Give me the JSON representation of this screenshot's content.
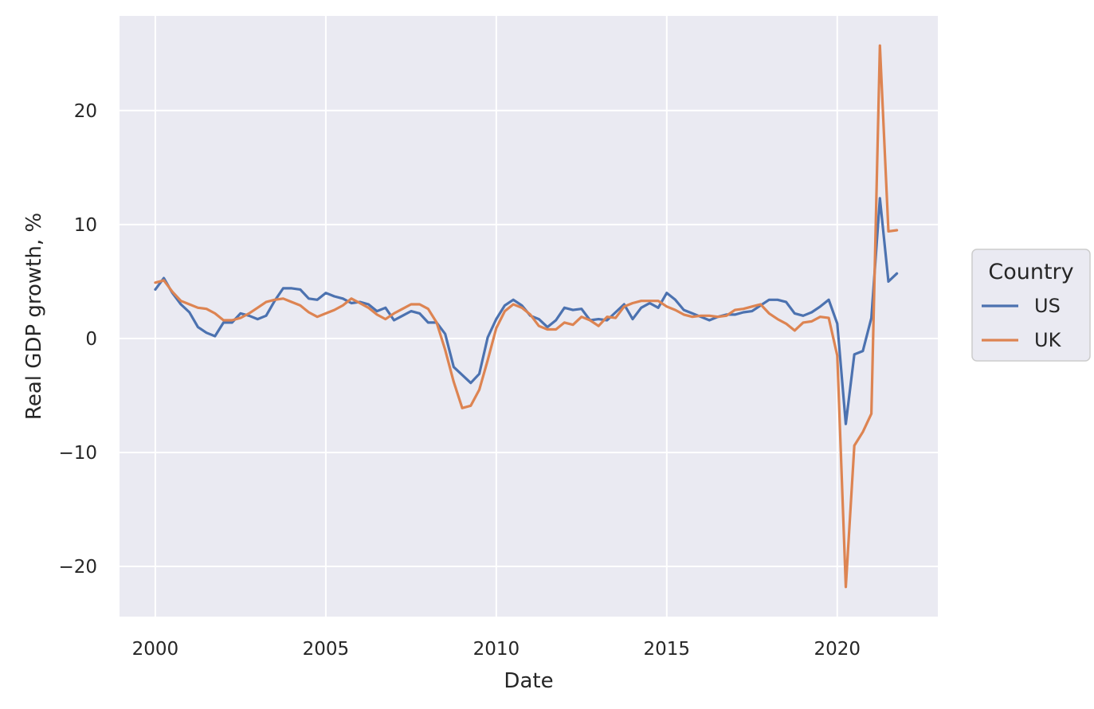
{
  "chart_data": {
    "type": "line",
    "xlabel": "Date",
    "ylabel": "Real GDP growth, %",
    "xlim": [
      1998.95,
      2022.95
    ],
    "ylim": [
      -24.4,
      28.3
    ],
    "x_ticks": [
      2000,
      2005,
      2010,
      2015,
      2020
    ],
    "x_tick_labels": [
      "2000",
      "2005",
      "2010",
      "2015",
      "2020"
    ],
    "y_ticks": [
      -20,
      -10,
      0,
      10,
      20
    ],
    "y_tick_labels": [
      "−20",
      "−10",
      "0",
      "10",
      "20"
    ],
    "grid": true,
    "background": "#EAEAF2",
    "legend": {
      "title": "Country",
      "placement": "outside-right"
    },
    "x": [
      2000.0,
      2000.25,
      2000.5,
      2000.75,
      2001.0,
      2001.25,
      2001.5,
      2001.75,
      2002.0,
      2002.25,
      2002.5,
      2002.75,
      2003.0,
      2003.25,
      2003.5,
      2003.75,
      2004.0,
      2004.25,
      2004.5,
      2004.75,
      2005.0,
      2005.25,
      2005.5,
      2005.75,
      2006.0,
      2006.25,
      2006.5,
      2006.75,
      2007.0,
      2007.25,
      2007.5,
      2007.75,
      2008.0,
      2008.25,
      2008.5,
      2008.75,
      2009.0,
      2009.25,
      2009.5,
      2009.75,
      2010.0,
      2010.25,
      2010.5,
      2010.75,
      2011.0,
      2011.25,
      2011.5,
      2011.75,
      2012.0,
      2012.25,
      2012.5,
      2012.75,
      2013.0,
      2013.25,
      2013.5,
      2013.75,
      2014.0,
      2014.25,
      2014.5,
      2014.75,
      2015.0,
      2015.25,
      2015.5,
      2015.75,
      2016.0,
      2016.25,
      2016.5,
      2016.75,
      2017.0,
      2017.25,
      2017.5,
      2017.75,
      2018.0,
      2018.25,
      2018.5,
      2018.75,
      2019.0,
      2019.25,
      2019.5,
      2019.75,
      2020.0,
      2020.25,
      2020.5,
      2020.75,
      2021.0,
      2021.25,
      2021.5,
      2021.75
    ],
    "series": [
      {
        "name": "US",
        "color": "#4C72B0",
        "values": [
          4.3,
          5.3,
          4.0,
          3.0,
          2.3,
          1.0,
          0.5,
          0.2,
          1.4,
          1.4,
          2.2,
          2.0,
          1.7,
          2.0,
          3.3,
          4.4,
          4.4,
          4.3,
          3.5,
          3.4,
          4.0,
          3.7,
          3.5,
          3.1,
          3.2,
          3.0,
          2.4,
          2.7,
          1.6,
          2.0,
          2.4,
          2.2,
          1.4,
          1.4,
          0.4,
          -2.5,
          -3.2,
          -3.9,
          -3.1,
          0.1,
          1.7,
          2.9,
          3.4,
          2.9,
          2.0,
          1.7,
          1.0,
          1.6,
          2.7,
          2.5,
          2.6,
          1.6,
          1.7,
          1.6,
          2.3,
          3.0,
          1.7,
          2.7,
          3.1,
          2.7,
          4.0,
          3.4,
          2.5,
          2.2,
          1.9,
          1.6,
          1.9,
          2.1,
          2.1,
          2.3,
          2.4,
          2.9,
          3.4,
          3.4,
          3.2,
          2.2,
          2.0,
          2.3,
          2.8,
          3.4,
          1.3,
          -7.5,
          -1.4,
          -1.1,
          1.8,
          12.3,
          5.0,
          5.7
        ]
      },
      {
        "name": "UK",
        "color": "#DD8452",
        "values": [
          4.9,
          5.1,
          4.1,
          3.3,
          3.0,
          2.7,
          2.6,
          2.2,
          1.6,
          1.6,
          1.8,
          2.2,
          2.7,
          3.2,
          3.4,
          3.5,
          3.2,
          2.9,
          2.3,
          1.9,
          2.2,
          2.5,
          2.9,
          3.5,
          3.1,
          2.7,
          2.1,
          1.7,
          2.2,
          2.6,
          3.0,
          3.0,
          2.6,
          1.4,
          -1.0,
          -3.8,
          -6.1,
          -5.9,
          -4.5,
          -1.9,
          0.9,
          2.4,
          3.0,
          2.7,
          2.1,
          1.1,
          0.8,
          0.8,
          1.4,
          1.2,
          1.9,
          1.6,
          1.1,
          1.9,
          1.8,
          2.8,
          3.1,
          3.3,
          3.3,
          3.3,
          2.8,
          2.5,
          2.1,
          1.9,
          2.0,
          2.0,
          1.9,
          2.0,
          2.5,
          2.6,
          2.8,
          3.0,
          2.2,
          1.7,
          1.3,
          0.7,
          1.4,
          1.5,
          1.9,
          1.8,
          -1.5,
          -21.8,
          -9.4,
          -8.2,
          -6.6,
          25.7,
          9.4,
          9.5
        ]
      }
    ]
  }
}
